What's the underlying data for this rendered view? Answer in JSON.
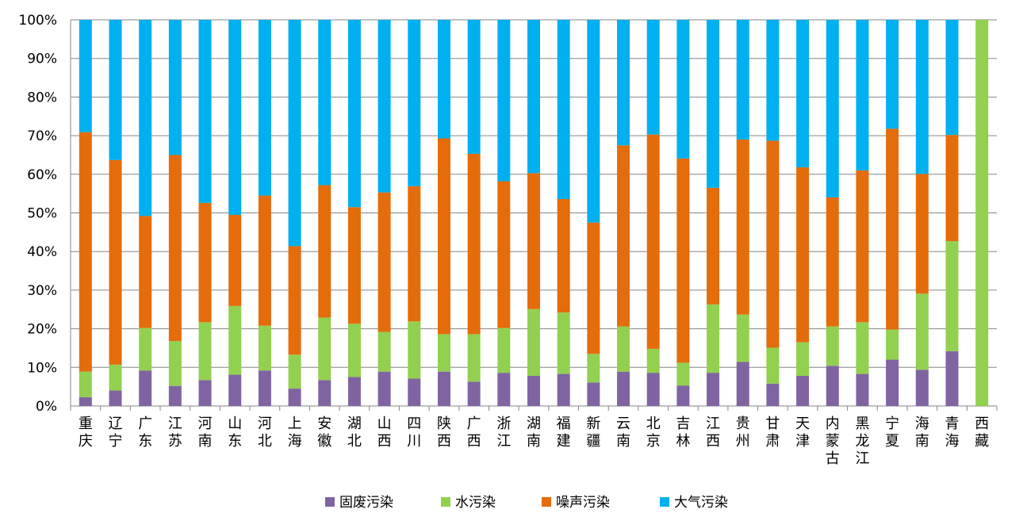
{
  "chart_data": {
    "type": "bar",
    "stacked": true,
    "percent": true,
    "categories": [
      "重庆",
      "辽宁",
      "广东",
      "江苏",
      "河南",
      "山东",
      "河北",
      "上海",
      "安徽",
      "湖北",
      "山西",
      "四川",
      "陕西",
      "广西",
      "浙江",
      "湖南",
      "福建",
      "新疆",
      "云南",
      "北京",
      "吉林",
      "江西",
      "贵州",
      "甘肃",
      "天津",
      "内蒙古",
      "黑龙江",
      "宁夏",
      "海南",
      "青海",
      "西藏"
    ],
    "y_ticks": [
      "0%",
      "10%",
      "20%",
      "30%",
      "40%",
      "50%",
      "60%",
      "70%",
      "80%",
      "90%",
      "100%"
    ],
    "ylim": [
      0,
      100
    ],
    "legend_position": "bottom",
    "grid": true,
    "series": [
      {
        "name": "固废污染",
        "color": "#8064A2",
        "values": [
          2.3,
          4,
          9.2,
          5.2,
          6.7,
          8.1,
          9.2,
          4.5,
          6.7,
          7.5,
          8.9,
          7.1,
          8.9,
          6.3,
          8.6,
          7.8,
          8.3,
          6.1,
          8.9,
          8.6,
          5.3,
          8.6,
          11.4,
          5.8,
          7.8,
          10.4,
          8.3,
          12,
          9.4,
          14.2,
          0
        ]
      },
      {
        "name": "水污染",
        "color": "#92D050",
        "values": [
          6.6,
          6.7,
          11,
          11.6,
          15,
          17.8,
          11.6,
          8.8,
          16.2,
          13.8,
          10.3,
          14.8,
          9.7,
          12.3,
          11.6,
          17.3,
          15.9,
          7.4,
          11.7,
          6.2,
          5.9,
          17.7,
          12.3,
          9.3,
          8.7,
          10.2,
          13.4,
          7.8,
          19.7,
          28.5,
          100
        ]
      },
      {
        "name": "噪声污染",
        "color": "#E46C0A",
        "values": [
          62,
          53,
          29,
          48.2,
          30.9,
          23.6,
          33.7,
          28.1,
          34.3,
          30.2,
          36.1,
          35,
          50.7,
          46.7,
          38,
          35.2,
          29.4,
          34,
          46.9,
          55.5,
          52.9,
          30.2,
          45.3,
          53.6,
          45.3,
          33.4,
          39.3,
          52,
          31,
          27.5,
          0
        ]
      },
      {
        "name": "大气污染",
        "color": "#00B0F0",
        "values": [
          29.1,
          36.3,
          50.8,
          35,
          47.4,
          50.5,
          45.5,
          58.6,
          42.8,
          48.5,
          44.7,
          43.1,
          30.7,
          34.7,
          41.8,
          39.7,
          46.4,
          52.5,
          32.5,
          29.7,
          35.9,
          43.5,
          31,
          31.3,
          38.2,
          46,
          39,
          28.2,
          39.9,
          29.8,
          0
        ]
      }
    ]
  }
}
